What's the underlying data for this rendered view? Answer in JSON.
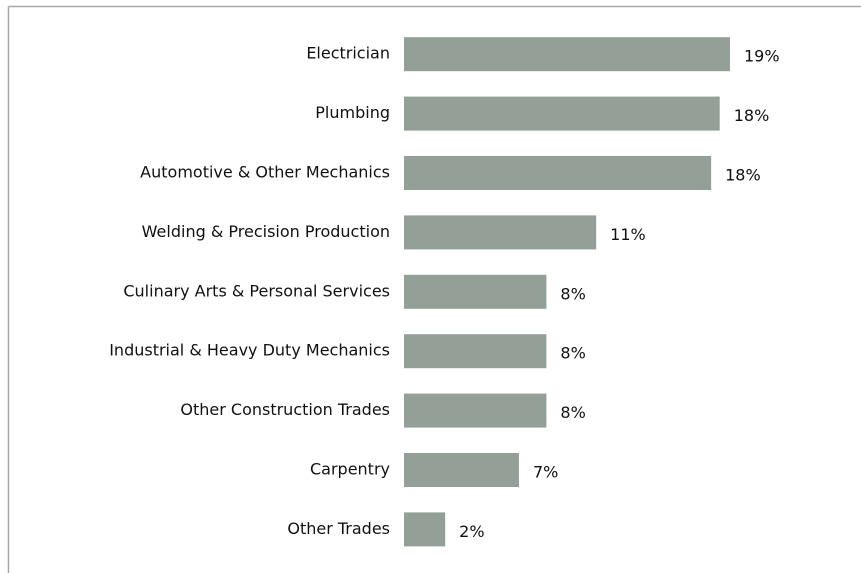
{
  "chart_data": {
    "type": "hbar",
    "categories": [
      "Electrician",
      "Plumbing",
      "Automotive & Other Mechanics",
      "Welding & Precision Production",
      "Culinary Arts & Personal Services",
      "Industrial & Heavy Duty Mechanics",
      "Other Construction Trades",
      "Carpentry",
      "Other Trades"
    ],
    "values": [
      19,
      18.4,
      17.9,
      11.2,
      8.3,
      8.3,
      8.3,
      6.7,
      2.4
    ],
    "value_labels": [
      "19%",
      "18%",
      "18%",
      "11%",
      "8%",
      "8%",
      "8%",
      "7%",
      "2%"
    ],
    "color": "#939f97"
  }
}
